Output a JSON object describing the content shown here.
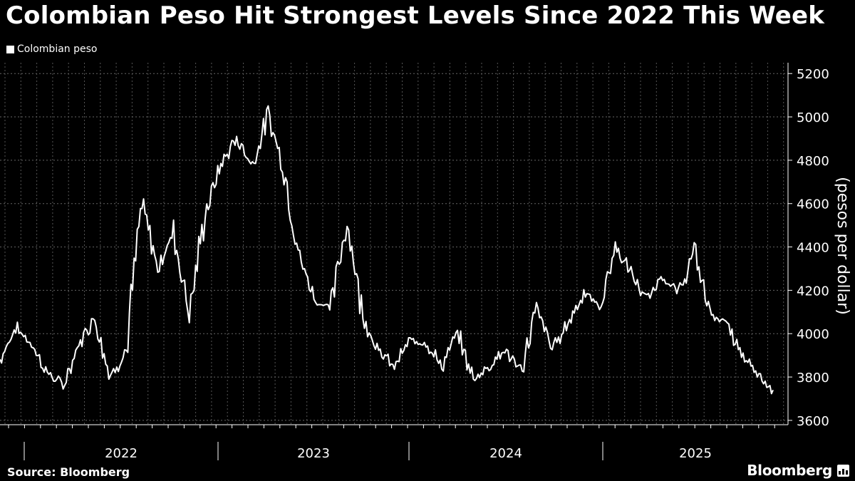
{
  "title": "Colombian Peso Hit Strongest Levels Since 2022 This Week",
  "legend_label": "Colombian peso",
  "source": "Source: Bloomberg",
  "brand": "Bloomberg",
  "chart_data": {
    "type": "line",
    "ylabel": "(pesos per dollar)",
    "ylim": [
      3580,
      5250
    ],
    "yticks": [
      3600,
      3800,
      4000,
      4200,
      4400,
      4600,
      4800,
      5000,
      5200
    ],
    "x_ticks": [
      "2022",
      "2023",
      "2024",
      "2025"
    ],
    "grid": true,
    "y_axis_position": "right",
    "series": [
      {
        "name": "Colombian peso",
        "color": "#ffffff",
        "x": [
          "2021-06",
          "2021-07",
          "2021-08",
          "2021-09",
          "2021-10",
          "2021-11",
          "2021-12",
          "2022-01",
          "2022-02",
          "2022-03",
          "2022-04",
          "2022-05",
          "2022-06",
          "2022-07",
          "2022-08",
          "2022-09",
          "2022-10",
          "2022-11",
          "2022-12",
          "2023-01",
          "2023-02",
          "2023-03",
          "2023-04",
          "2023-05",
          "2023-06",
          "2023-07",
          "2023-08",
          "2023-09",
          "2023-10",
          "2023-11",
          "2023-12",
          "2024-01",
          "2024-02",
          "2024-03",
          "2024-04",
          "2024-05",
          "2024-06",
          "2024-07",
          "2024-08",
          "2024-09",
          "2024-10",
          "2024-11",
          "2024-12",
          "2025-01",
          "2025-02",
          "2025-03",
          "2025-04",
          "2025-05",
          "2025-06",
          "2025-07"
        ],
        "values": [
          3880,
          4030,
          3950,
          3820,
          3760,
          3950,
          4080,
          3800,
          3920,
          4600,
          4300,
          4470,
          4100,
          4550,
          4780,
          4900,
          4780,
          5010,
          4760,
          4350,
          4150,
          4120,
          4530,
          4080,
          3920,
          3850,
          3970,
          3960,
          3850,
          4000,
          3790,
          3850,
          3930,
          3820,
          4120,
          3930,
          4050,
          4190,
          4120,
          4400,
          4280,
          4150,
          4270,
          4180,
          4380,
          4100,
          4050,
          3900,
          3820,
          3740
        ]
      }
    ]
  }
}
